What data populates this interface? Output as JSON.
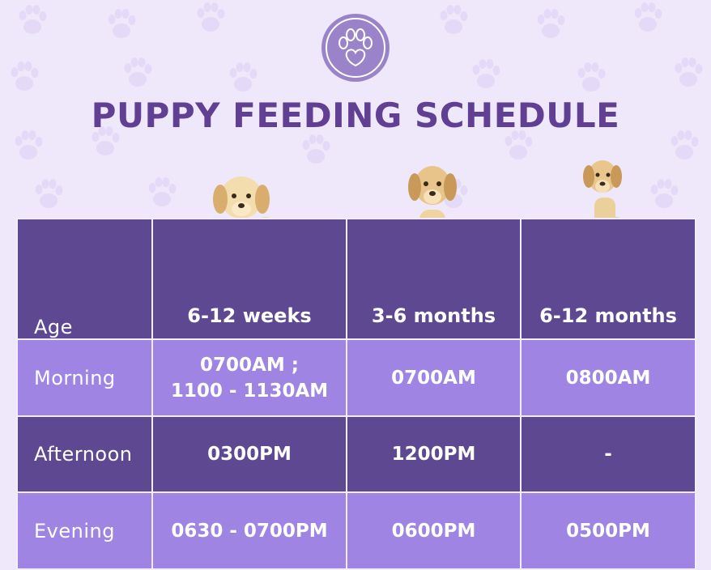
{
  "title": "PUPPY FEEDING SCHEDULE",
  "logo_icon": "paw-heart-icon",
  "colors": {
    "background": "#efe8fb",
    "title": "#613f92",
    "dark_row": "#5f4892",
    "light_row": "#9f84e4",
    "logo": "#9a83c8"
  },
  "table": {
    "header": {
      "label": "Age",
      "columns": [
        "6-12 weeks",
        "3-6 months",
        "6-12 months"
      ]
    },
    "rows": [
      {
        "label": "Morning",
        "cells": [
          "0700AM ;\n1100 - 1130AM",
          "0700AM",
          "0800AM"
        ]
      },
      {
        "label": "Afternoon",
        "cells": [
          "0300PM",
          "1200PM",
          "-"
        ]
      },
      {
        "label": "Evening",
        "cells": [
          "0630 - 0700PM",
          "0600PM",
          "0500PM"
        ]
      }
    ]
  }
}
